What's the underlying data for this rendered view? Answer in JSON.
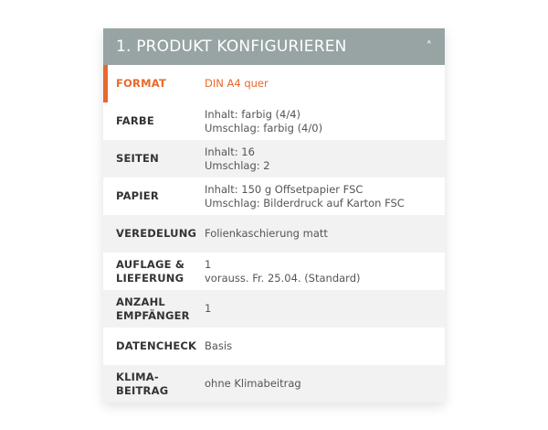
{
  "header": {
    "title": "1. PRODUKT KONFIGURIEREN",
    "chevron_icon": "chevron-up-icon"
  },
  "accent_color": "#e8692b",
  "header_color": "#97a4a3",
  "rows": [
    {
      "label": [
        "FORMAT"
      ],
      "value": [
        "DIN A4 quer"
      ],
      "active": true
    },
    {
      "label": [
        "FARBE"
      ],
      "value": [
        "Inhalt: farbig (4/4)",
        "Umschlag: farbig (4/0)"
      ]
    },
    {
      "label": [
        "SEITEN"
      ],
      "value": [
        "Inhalt: 16",
        "Umschlag: 2"
      ]
    },
    {
      "label": [
        "PAPIER"
      ],
      "value": [
        "Inhalt: 150 g Offsetpapier FSC",
        "Umschlag: Bilderdruck auf Karton FSC"
      ]
    },
    {
      "label": [
        "VEREDELUNG"
      ],
      "value": [
        "Folienkaschierung matt"
      ]
    },
    {
      "label": [
        "AUFLAGE &",
        "LIEFERUNG"
      ],
      "value": [
        "1",
        "vorauss. Fr. 25.04. (Standard)"
      ]
    },
    {
      "label": [
        "ANZAHL",
        "EMPFÄNGER"
      ],
      "value": [
        "1"
      ]
    },
    {
      "label": [
        "DATENCHECK"
      ],
      "value": [
        "Basis"
      ]
    },
    {
      "label": [
        "KLIMA-",
        "BEITRAG"
      ],
      "value": [
        "ohne Klimabeitrag"
      ]
    }
  ]
}
